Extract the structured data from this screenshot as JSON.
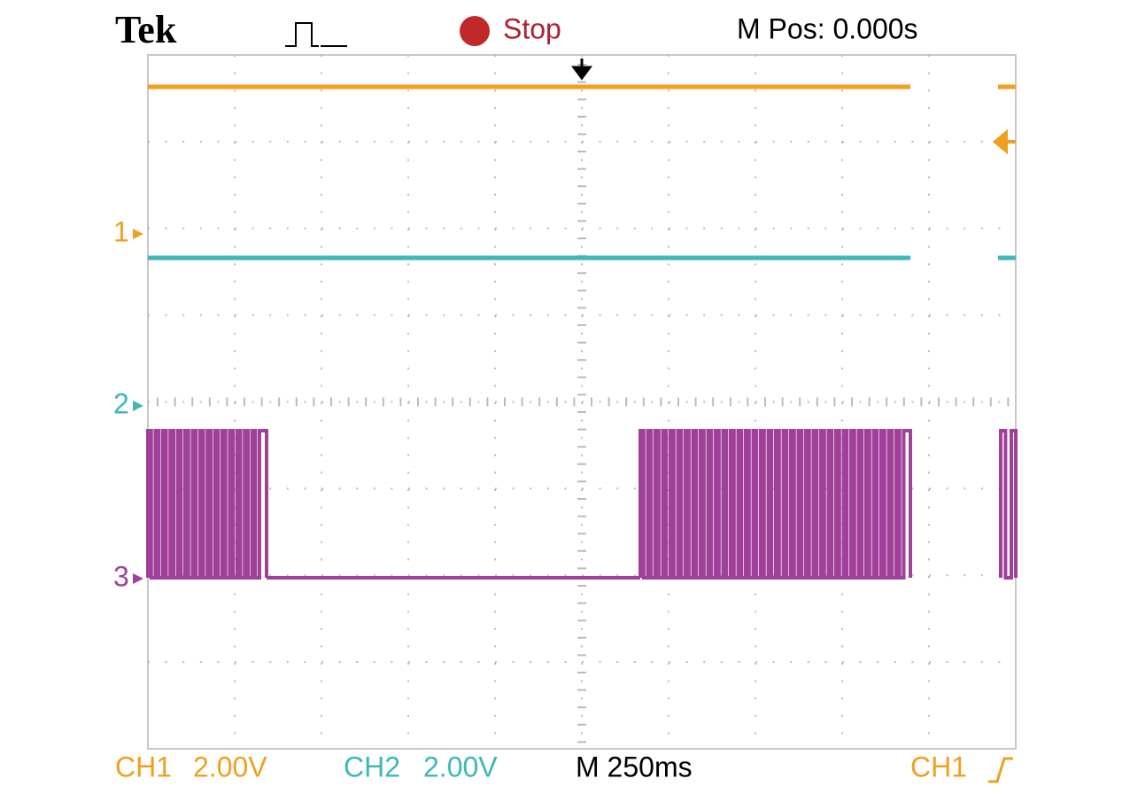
{
  "header": {
    "brand": "Tek",
    "status": "Stop",
    "position": "M Pos: 0.000s"
  },
  "markers": [
    "1",
    "2",
    "3"
  ],
  "footer": {
    "ch1": "CH1",
    "ch1_scale": "2.00V",
    "ch2": "CH2",
    "ch2_scale": "2.00V",
    "timebase": "M 250ms",
    "trigger_source": "CH1"
  }
}
